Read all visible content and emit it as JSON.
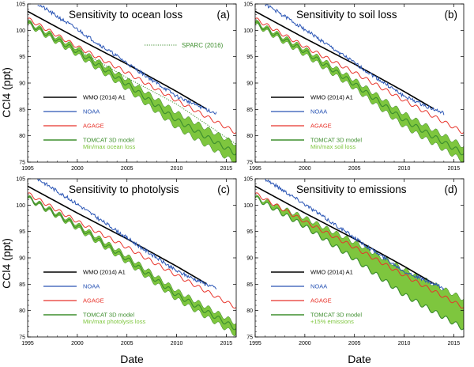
{
  "figure": {
    "ylabel": "CCl4 (ppt)",
    "xlabel": "Date"
  },
  "colors": {
    "wmo": "#000000",
    "noaa": "#2a55b5",
    "agage": "#e8332a",
    "tomcat_line": "#3f8f2f",
    "tomcat_band": "#7ec63e",
    "tomcat_text": "#3f8f2f",
    "minmax_text": "#7ec63e",
    "sparc": "#3f8f2f"
  },
  "chart_data": [
    {
      "type": "line",
      "panel": "a",
      "title": "Sensitivity to ocean loss",
      "letter": "(a)",
      "xlim": [
        1995,
        2016
      ],
      "ylim": [
        75,
        105
      ],
      "xticks": [
        1995,
        2000,
        2005,
        2010,
        2015
      ],
      "yticks": [
        75,
        80,
        85,
        90,
        95,
        100,
        105
      ],
      "series": [
        {
          "name": "WMO (2014) A1",
          "x": [
            1995,
            2000,
            2005,
            2010,
            2013
          ],
          "y": [
            103.6,
            98.5,
            93.6,
            88.4,
            85.1
          ]
        },
        {
          "name": "NOAA",
          "x": [
            1996,
            1998,
            2000,
            2002,
            2004,
            2006,
            2008,
            2010,
            2012,
            2014
          ],
          "y": [
            105.0,
            102.6,
            100.2,
            97.6,
            95.1,
            92.5,
            90.0,
            87.5,
            85.8,
            84.2
          ]
        },
        {
          "name": "AGAGE",
          "x": [
            1995,
            2000,
            2005,
            2010,
            2016
          ],
          "y": [
            102.2,
            96.9,
            92.0,
            86.7,
            80.6
          ]
        },
        {
          "name": "TOMCAT 3D model",
          "x": [
            1995,
            2000,
            2005,
            2010,
            2016
          ],
          "y": [
            101.4,
            96.0,
            89.8,
            83.0,
            76.6
          ]
        },
        {
          "name": "SPARC (2016)",
          "x": [
            2000,
            2005,
            2010,
            2016
          ],
          "y": [
            96.4,
            91.0,
            86.0,
            78.4
          ]
        }
      ],
      "band": {
        "name": "Min/max ocean loss",
        "x": [
          1995,
          2000,
          2005,
          2010,
          2016
        ],
        "lower": [
          101.1,
          95.4,
          88.9,
          81.6,
          74.8
        ],
        "upper": [
          101.7,
          96.6,
          90.7,
          84.4,
          78.4
        ]
      },
      "sparc_label": "SPARC (2016)",
      "legend": [
        "WMO (2014) A1",
        "NOAA",
        "AGAGE",
        "TOMCAT 3D model",
        "Min/max ocean loss"
      ]
    },
    {
      "type": "line",
      "panel": "b",
      "title": "Sensitivity to soil loss",
      "letter": "(b)",
      "xlim": [
        1995,
        2016
      ],
      "ylim": [
        75,
        105
      ],
      "xticks": [
        1995,
        2000,
        2005,
        2010,
        2015
      ],
      "yticks": [
        75,
        80,
        85,
        90,
        95,
        100,
        105
      ],
      "series": [
        {
          "name": "WMO (2014) A1",
          "x": [
            1995,
            2000,
            2005,
            2010,
            2013
          ],
          "y": [
            103.6,
            98.5,
            93.6,
            88.4,
            85.1
          ]
        },
        {
          "name": "NOAA",
          "x": [
            1996,
            1998,
            2000,
            2002,
            2004,
            2006,
            2008,
            2010,
            2012,
            2014
          ],
          "y": [
            105.0,
            102.6,
            100.2,
            97.6,
            95.1,
            92.5,
            90.0,
            87.5,
            85.8,
            84.2
          ]
        },
        {
          "name": "AGAGE",
          "x": [
            1995,
            2000,
            2005,
            2010,
            2016
          ],
          "y": [
            102.2,
            96.9,
            92.0,
            86.7,
            80.6
          ]
        },
        {
          "name": "TOMCAT 3D model",
          "x": [
            1995,
            2000,
            2005,
            2010,
            2016
          ],
          "y": [
            101.4,
            96.0,
            89.8,
            83.0,
            76.6
          ]
        }
      ],
      "band": {
        "name": "Min/max soil loss",
        "x": [
          1995,
          2000,
          2005,
          2010,
          2016
        ],
        "lower": [
          101.1,
          95.4,
          89.0,
          81.8,
          75.2
        ],
        "upper": [
          101.7,
          96.5,
          90.6,
          84.2,
          78.0
        ]
      },
      "legend": [
        "WMO (2014) A1",
        "NOAA",
        "AGAGE",
        "TOMCAT 3D model",
        "Min/max soil loss"
      ]
    },
    {
      "type": "line",
      "panel": "c",
      "title": "Sensitivity to photolysis",
      "letter": "(c)",
      "xlim": [
        1995,
        2016
      ],
      "ylim": [
        75,
        105
      ],
      "xticks": [
        1995,
        2000,
        2005,
        2010,
        2015
      ],
      "yticks": [
        75,
        80,
        85,
        90,
        95,
        100,
        105
      ],
      "series": [
        {
          "name": "WMO (2014) A1",
          "x": [
            1995,
            2000,
            2005,
            2010,
            2013
          ],
          "y": [
            103.6,
            98.5,
            93.6,
            88.4,
            85.1
          ]
        },
        {
          "name": "NOAA",
          "x": [
            1996,
            1998,
            2000,
            2002,
            2004,
            2006,
            2008,
            2010,
            2012,
            2014
          ],
          "y": [
            105.0,
            102.6,
            100.2,
            97.6,
            95.1,
            92.5,
            90.0,
            87.5,
            85.8,
            84.2
          ]
        },
        {
          "name": "AGAGE",
          "x": [
            1995,
            2000,
            2005,
            2010,
            2016
          ],
          "y": [
            102.2,
            96.9,
            92.0,
            86.7,
            80.6
          ]
        },
        {
          "name": "TOMCAT 3D model",
          "x": [
            1995,
            2000,
            2005,
            2010,
            2016
          ],
          "y": [
            101.4,
            96.0,
            89.8,
            83.0,
            76.6
          ]
        }
      ],
      "band": {
        "name": "Min/max photolysis loss",
        "x": [
          1995,
          2000,
          2005,
          2010,
          2016
        ],
        "lower": [
          101.2,
          95.6,
          89.2,
          82.2,
          75.4
        ],
        "upper": [
          101.6,
          96.4,
          90.4,
          83.8,
          77.6
        ]
      },
      "legend": [
        "WMO (2014) A1",
        "NOAA",
        "AGAGE",
        "TOMCAT 3D model",
        "Min/max photolysis loss"
      ]
    },
    {
      "type": "line",
      "panel": "d",
      "title": "Sensitivity to emissions",
      "letter": "(d)",
      "xlim": [
        1995,
        2016
      ],
      "ylim": [
        75,
        105
      ],
      "xticks": [
        1995,
        2000,
        2005,
        2010,
        2015
      ],
      "yticks": [
        75,
        80,
        85,
        90,
        95,
        100,
        105
      ],
      "series": [
        {
          "name": "WMO (2014) A1",
          "x": [
            1995,
            2000,
            2005,
            2010,
            2013
          ],
          "y": [
            103.6,
            98.5,
            93.6,
            88.4,
            85.1
          ]
        },
        {
          "name": "NOAA",
          "x": [
            1996,
            1998,
            2000,
            2002,
            2004,
            2006,
            2008,
            2010,
            2012,
            2014
          ],
          "y": [
            105.0,
            102.6,
            100.2,
            97.6,
            95.1,
            92.5,
            90.0,
            87.5,
            85.8,
            84.2
          ]
        },
        {
          "name": "AGAGE",
          "x": [
            1995,
            2000,
            2005,
            2010,
            2016
          ],
          "y": [
            102.2,
            96.9,
            92.0,
            86.7,
            80.6
          ]
        },
        {
          "name": "TOMCAT 3D model",
          "x": [
            1995,
            2000,
            2005,
            2010,
            2016
          ],
          "y": [
            101.4,
            96.0,
            89.8,
            83.0,
            76.6
          ]
        }
      ],
      "band": {
        "name": "+15% emissions",
        "x": [
          1995,
          2000,
          2005,
          2010,
          2016
        ],
        "lower": [
          101.4,
          96.0,
          89.8,
          83.0,
          76.6
        ],
        "upper": [
          101.6,
          97.6,
          93.0,
          87.8,
          82.2
        ]
      },
      "legend": [
        "WMO (2014) A1",
        "NOAA",
        "AGAGE",
        "TOMCAT 3D model",
        "+15% emissions"
      ]
    }
  ]
}
